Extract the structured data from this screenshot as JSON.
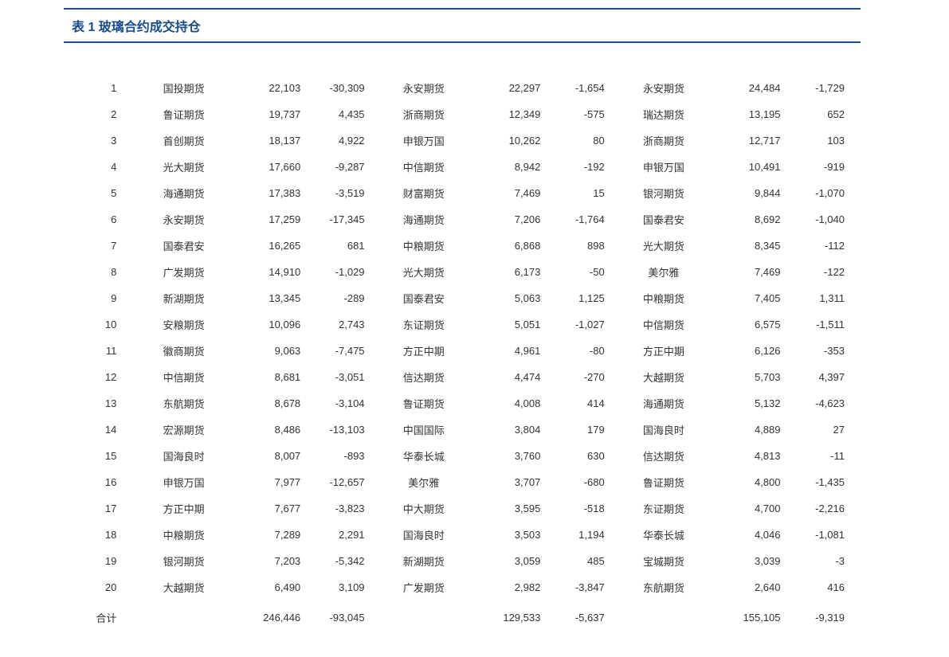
{
  "title": "表 1 玻璃合约成交持仓",
  "colors": {
    "title_color": "#1a4b8c",
    "border_color": "#1a4b8c",
    "text_color": "#333333",
    "background": "#ffffff"
  },
  "typography": {
    "title_fontsize": 16,
    "body_fontsize": 13,
    "font_family": "Microsoft YaHei"
  },
  "table": {
    "type": "table",
    "total_label": "合计",
    "rows": [
      {
        "rank": "1",
        "name1": "国投期货",
        "val1": "22,103",
        "chg1": "-30,309",
        "name2": "永安期货",
        "val2": "22,297",
        "chg2": "-1,654",
        "name3": "永安期货",
        "val3": "24,484",
        "chg3": "-1,729"
      },
      {
        "rank": "2",
        "name1": "鲁证期货",
        "val1": "19,737",
        "chg1": "4,435",
        "name2": "浙商期货",
        "val2": "12,349",
        "chg2": "-575",
        "name3": "瑞达期货",
        "val3": "13,195",
        "chg3": "652"
      },
      {
        "rank": "3",
        "name1": "首创期货",
        "val1": "18,137",
        "chg1": "4,922",
        "name2": "申银万国",
        "val2": "10,262",
        "chg2": "80",
        "name3": "浙商期货",
        "val3": "12,717",
        "chg3": "103"
      },
      {
        "rank": "4",
        "name1": "光大期货",
        "val1": "17,660",
        "chg1": "-9,287",
        "name2": "中信期货",
        "val2": "8,942",
        "chg2": "-192",
        "name3": "申银万国",
        "val3": "10,491",
        "chg3": "-919"
      },
      {
        "rank": "5",
        "name1": "海通期货",
        "val1": "17,383",
        "chg1": "-3,519",
        "name2": "财富期货",
        "val2": "7,469",
        "chg2": "15",
        "name3": "银河期货",
        "val3": "9,844",
        "chg3": "-1,070"
      },
      {
        "rank": "6",
        "name1": "永安期货",
        "val1": "17,259",
        "chg1": "-17,345",
        "name2": "海通期货",
        "val2": "7,206",
        "chg2": "-1,764",
        "name3": "国泰君安",
        "val3": "8,692",
        "chg3": "-1,040"
      },
      {
        "rank": "7",
        "name1": "国泰君安",
        "val1": "16,265",
        "chg1": "681",
        "name2": "中粮期货",
        "val2": "6,868",
        "chg2": "898",
        "name3": "光大期货",
        "val3": "8,345",
        "chg3": "-112"
      },
      {
        "rank": "8",
        "name1": "广发期货",
        "val1": "14,910",
        "chg1": "-1,029",
        "name2": "光大期货",
        "val2": "6,173",
        "chg2": "-50",
        "name3": "美尔雅",
        "val3": "7,469",
        "chg3": "-122"
      },
      {
        "rank": "9",
        "name1": "新湖期货",
        "val1": "13,345",
        "chg1": "-289",
        "name2": "国泰君安",
        "val2": "5,063",
        "chg2": "1,125",
        "name3": "中粮期货",
        "val3": "7,405",
        "chg3": "1,311"
      },
      {
        "rank": "10",
        "name1": "安粮期货",
        "val1": "10,096",
        "chg1": "2,743",
        "name2": "东证期货",
        "val2": "5,051",
        "chg2": "-1,027",
        "name3": "中信期货",
        "val3": "6,575",
        "chg3": "-1,511"
      },
      {
        "rank": "11",
        "name1": "徽商期货",
        "val1": "9,063",
        "chg1": "-7,475",
        "name2": "方正中期",
        "val2": "4,961",
        "chg2": "-80",
        "name3": "方正中期",
        "val3": "6,126",
        "chg3": "-353"
      },
      {
        "rank": "12",
        "name1": "中信期货",
        "val1": "8,681",
        "chg1": "-3,051",
        "name2": "信达期货",
        "val2": "4,474",
        "chg2": "-270",
        "name3": "大越期货",
        "val3": "5,703",
        "chg3": "4,397"
      },
      {
        "rank": "13",
        "name1": "东航期货",
        "val1": "8,678",
        "chg1": "-3,104",
        "name2": "鲁证期货",
        "val2": "4,008",
        "chg2": "414",
        "name3": "海通期货",
        "val3": "5,132",
        "chg3": "-4,623"
      },
      {
        "rank": "14",
        "name1": "宏源期货",
        "val1": "8,486",
        "chg1": "-13,103",
        "name2": "中国国际",
        "val2": "3,804",
        "chg2": "179",
        "name3": "国海良时",
        "val3": "4,889",
        "chg3": "27"
      },
      {
        "rank": "15",
        "name1": "国海良时",
        "val1": "8,007",
        "chg1": "-893",
        "name2": "华泰长城",
        "val2": "3,760",
        "chg2": "630",
        "name3": "信达期货",
        "val3": "4,813",
        "chg3": "-11"
      },
      {
        "rank": "16",
        "name1": "申银万国",
        "val1": "7,977",
        "chg1": "-12,657",
        "name2": "美尔雅",
        "val2": "3,707",
        "chg2": "-680",
        "name3": "鲁证期货",
        "val3": "4,800",
        "chg3": "-1,435"
      },
      {
        "rank": "17",
        "name1": "方正中期",
        "val1": "7,677",
        "chg1": "-3,823",
        "name2": "中大期货",
        "val2": "3,595",
        "chg2": "-518",
        "name3": "东证期货",
        "val3": "4,700",
        "chg3": "-2,216"
      },
      {
        "rank": "18",
        "name1": "中粮期货",
        "val1": "7,289",
        "chg1": "2,291",
        "name2": "国海良时",
        "val2": "3,503",
        "chg2": "1,194",
        "name3": "华泰长城",
        "val3": "4,046",
        "chg3": "-1,081"
      },
      {
        "rank": "19",
        "name1": "银河期货",
        "val1": "7,203",
        "chg1": "-5,342",
        "name2": "新湖期货",
        "val2": "3,059",
        "chg2": "485",
        "name3": "宝城期货",
        "val3": "3,039",
        "chg3": "-3"
      },
      {
        "rank": "20",
        "name1": "大越期货",
        "val1": "6,490",
        "chg1": "3,109",
        "name2": "广发期货",
        "val2": "2,982",
        "chg2": "-3,847",
        "name3": "东航期货",
        "val3": "2,640",
        "chg3": "416"
      }
    ],
    "totals": {
      "val1": "246,446",
      "chg1": "-93,045",
      "val2": "129,533",
      "chg2": "-5,637",
      "val3": "155,105",
      "chg3": "-9,319"
    }
  }
}
